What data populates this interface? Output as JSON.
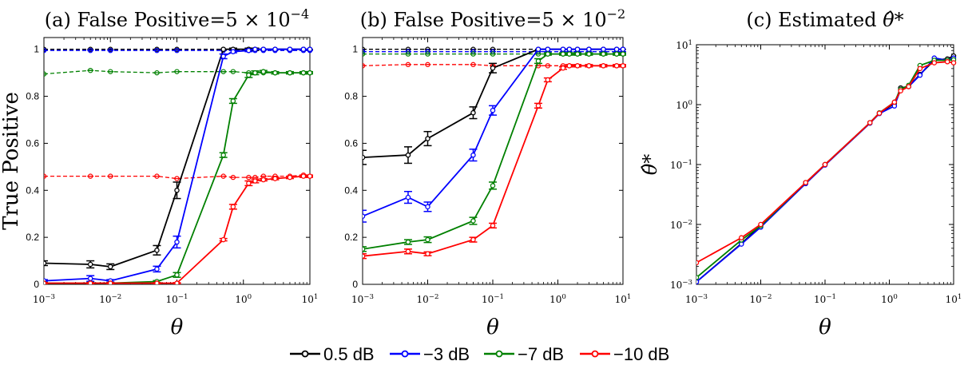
{
  "legend": [
    {
      "label": "0.5 dB",
      "color": "#000000"
    },
    {
      "label": "−3 dB",
      "color": "#0000ff"
    },
    {
      "label": "−7 dB",
      "color": "#008000"
    },
    {
      "label": "−10 dB",
      "color": "#ff0000"
    }
  ],
  "chart_data": [
    {
      "type": "line",
      "title_prefix": "(a) False Positive=5 × 10",
      "title_exp": "−4",
      "xlabel": "θ",
      "ylabel": "True Positive",
      "xscale": "log",
      "yscale": "linear",
      "xlim": [
        0.001,
        10
      ],
      "ylim": [
        0,
        1.05
      ],
      "xticks": [
        {
          "base": "10",
          "exp": "−3"
        },
        {
          "base": "10",
          "exp": "−2"
        },
        {
          "base": "10",
          "exp": "−1"
        },
        {
          "base": "10",
          "exp": "0"
        },
        {
          "base": "10",
          "exp": "1"
        }
      ],
      "yticks": [
        "0",
        "0.2",
        "0.4",
        "0.6",
        "0.8",
        "1"
      ],
      "x": [
        0.001,
        0.005,
        0.01,
        0.05,
        0.1,
        0.5,
        0.7,
        1.2,
        1.5,
        2,
        3,
        5,
        8,
        10
      ],
      "series": [
        {
          "name": "0.5 dB",
          "color": "#000000",
          "values": [
            0.09,
            0.085,
            0.075,
            0.145,
            0.4,
            1.0,
            1.0,
            1.0,
            1.0,
            1.0,
            1.0,
            1.0,
            1.0,
            1.0
          ],
          "error": [
            0.01,
            0.015,
            0.012,
            0.02,
            0.035,
            0,
            0.005,
            0.005,
            0.005,
            0,
            0,
            0,
            0,
            0
          ]
        },
        {
          "name": "−3 dB",
          "color": "#0000ff",
          "values": [
            0.015,
            0.025,
            0.015,
            0.065,
            0.18,
            0.97,
            0.99,
            0.995,
            1.0,
            1.0,
            1.0,
            1.0,
            1.0,
            1.0
          ],
          "error": [
            0.005,
            0.012,
            0.005,
            0.012,
            0.025,
            0.01,
            0.005,
            0.005,
            0,
            0,
            0,
            0,
            0,
            0
          ]
        },
        {
          "name": "−7 dB",
          "color": "#008000",
          "values": [
            0.005,
            0.005,
            0.005,
            0.012,
            0.04,
            0.55,
            0.78,
            0.89,
            0.9,
            0.905,
            0.9,
            0.9,
            0.9,
            0.9
          ],
          "error": [
            0.003,
            0.003,
            0.003,
            0.004,
            0.01,
            0.01,
            0.01,
            0.01,
            0.008,
            0.005,
            0.005,
            0.005,
            0.005,
            0.005
          ]
        },
        {
          "name": "−10 dB",
          "color": "#ff0000",
          "values": [
            0.005,
            0.005,
            0.005,
            0.005,
            0.005,
            0.19,
            0.33,
            0.43,
            0.44,
            0.445,
            0.45,
            0.455,
            0.46,
            0.46
          ],
          "error": [
            0.002,
            0.002,
            0.002,
            0.002,
            0.002,
            0.005,
            0.01,
            0.01,
            0.008,
            0.005,
            0.005,
            0.005,
            0.005,
            0.005
          ]
        }
      ],
      "dashed_x": [
        0.001,
        0.005,
        0.01,
        0.05,
        0.1,
        0.5,
        0.7,
        1.2,
        1.5,
        2,
        3,
        5,
        8,
        10
      ],
      "dashed_series": [
        {
          "name": "0.5 dB",
          "color": "#000000",
          "values": [
            1.0,
            1.0,
            1.0,
            1.0,
            1.0,
            1.0,
            1.0,
            1.0,
            1.0,
            1.0,
            1.0,
            1.0,
            1.0,
            1.0
          ]
        },
        {
          "name": "−3 dB",
          "color": "#0000ff",
          "values": [
            0.995,
            0.995,
            0.995,
            0.995,
            0.995,
            0.995,
            0.995,
            0.995,
            0.995,
            0.995,
            0.995,
            0.995,
            0.995,
            0.995
          ]
        },
        {
          "name": "−7 dB",
          "color": "#008000",
          "values": [
            0.895,
            0.91,
            0.905,
            0.9,
            0.905,
            0.905,
            0.905,
            0.9,
            0.9,
            0.9,
            0.9,
            0.9,
            0.9,
            0.9
          ]
        },
        {
          "name": "−10 dB",
          "color": "#ff0000",
          "values": [
            0.46,
            0.46,
            0.46,
            0.46,
            0.45,
            0.46,
            0.455,
            0.455,
            0.455,
            0.46,
            0.46,
            0.46,
            0.465,
            0.46
          ]
        }
      ]
    },
    {
      "type": "line",
      "title_prefix": "(b) False Positive=5 × 10",
      "title_exp": "−2",
      "xlabel": "θ",
      "ylabel": "",
      "xscale": "log",
      "yscale": "linear",
      "xlim": [
        0.001,
        10
      ],
      "ylim": [
        0,
        1.05
      ],
      "xticks": [
        {
          "base": "10",
          "exp": "−3"
        },
        {
          "base": "10",
          "exp": "−2"
        },
        {
          "base": "10",
          "exp": "−1"
        },
        {
          "base": "10",
          "exp": "0"
        },
        {
          "base": "10",
          "exp": "1"
        }
      ],
      "yticks": [
        "0",
        "0.2",
        "0.4",
        "0.6",
        "0.8",
        "1"
      ],
      "x": [
        0.001,
        0.005,
        0.01,
        0.05,
        0.1,
        0.5,
        0.7,
        1.2,
        1.5,
        2,
        3,
        5,
        8,
        10
      ],
      "series": [
        {
          "name": "0.5 dB",
          "color": "#000000",
          "values": [
            0.54,
            0.55,
            0.62,
            0.73,
            0.92,
            1.0,
            1.0,
            1.0,
            1.0,
            1.0,
            1.0,
            1.0,
            1.0,
            1.0
          ],
          "error": [
            0.03,
            0.035,
            0.03,
            0.025,
            0.02,
            0,
            0,
            0,
            0,
            0,
            0,
            0,
            0,
            0
          ]
        },
        {
          "name": "−3 dB",
          "color": "#0000ff",
          "values": [
            0.29,
            0.37,
            0.33,
            0.55,
            0.74,
            1.0,
            1.0,
            1.0,
            1.0,
            1.0,
            1.0,
            1.0,
            1.0,
            1.0
          ],
          "error": [
            0.025,
            0.025,
            0.02,
            0.025,
            0.02,
            0,
            0,
            0,
            0,
            0,
            0,
            0,
            0,
            0
          ]
        },
        {
          "name": "−7 dB",
          "color": "#008000",
          "values": [
            0.15,
            0.18,
            0.19,
            0.27,
            0.42,
            0.95,
            0.98,
            0.98,
            0.98,
            0.98,
            0.98,
            0.98,
            0.98,
            0.98
          ],
          "error": [
            0.01,
            0.01,
            0.012,
            0.015,
            0.015,
            0.01,
            0.005,
            0.005,
            0.005,
            0.005,
            0.005,
            0.005,
            0.005,
            0.005
          ]
        },
        {
          "name": "−10 dB",
          "color": "#ff0000",
          "values": [
            0.12,
            0.14,
            0.13,
            0.19,
            0.25,
            0.76,
            0.87,
            0.92,
            0.93,
            0.93,
            0.93,
            0.93,
            0.93,
            0.93
          ],
          "error": [
            0.01,
            0.01,
            0.008,
            0.01,
            0.01,
            0.01,
            0.008,
            0.005,
            0.005,
            0.005,
            0.005,
            0.005,
            0.005,
            0.005
          ]
        }
      ],
      "dashed_x": [
        0.001,
        0.005,
        0.01,
        0.05,
        0.1,
        0.5,
        0.7,
        1.2,
        1.5,
        2,
        3,
        5,
        8,
        10
      ],
      "dashed_series": [
        {
          "name": "0.5 dB",
          "color": "#000000",
          "values": [
            1.0,
            1.0,
            1.0,
            1.0,
            1.0,
            1.0,
            1.0,
            1.0,
            1.0,
            1.0,
            1.0,
            1.0,
            1.0,
            1.0
          ]
        },
        {
          "name": "−3 dB",
          "color": "#0000ff",
          "values": [
            0.99,
            0.99,
            0.99,
            0.99,
            0.99,
            0.99,
            0.99,
            0.99,
            0.99,
            0.99,
            0.99,
            0.99,
            0.99,
            0.99
          ]
        },
        {
          "name": "−7 dB",
          "color": "#008000",
          "values": [
            0.98,
            0.98,
            0.98,
            0.98,
            0.98,
            0.98,
            0.98,
            0.98,
            0.98,
            0.98,
            0.98,
            0.98,
            0.98,
            0.98
          ]
        },
        {
          "name": "−10 dB",
          "color": "#ff0000",
          "values": [
            0.93,
            0.935,
            0.935,
            0.935,
            0.93,
            0.93,
            0.93,
            0.93,
            0.93,
            0.93,
            0.93,
            0.93,
            0.93,
            0.93
          ]
        }
      ]
    },
    {
      "type": "line",
      "title_prefix": "(c) Estimated ",
      "title_symbol": "θ̂*",
      "xlabel": "θ",
      "ylabel": "θ̂*",
      "xscale": "log",
      "yscale": "log",
      "xlim": [
        0.001,
        10
      ],
      "ylim": [
        0.001,
        10
      ],
      "xticks": [
        {
          "base": "10",
          "exp": "−3"
        },
        {
          "base": "10",
          "exp": "−2"
        },
        {
          "base": "10",
          "exp": "−1"
        },
        {
          "base": "10",
          "exp": "0"
        },
        {
          "base": "10",
          "exp": "1"
        }
      ],
      "yticks": [
        {
          "base": "10",
          "exp": "−3"
        },
        {
          "base": "10",
          "exp": "−2"
        },
        {
          "base": "10",
          "exp": "−1"
        },
        {
          "base": "10",
          "exp": "0"
        },
        {
          "base": "10",
          "exp": "1"
        }
      ],
      "x": [
        0.001,
        0.005,
        0.01,
        0.05,
        0.1,
        0.5,
        0.7,
        1.2,
        1.5,
        2,
        3,
        5,
        8,
        10
      ],
      "series": [
        {
          "name": "0.5 dB",
          "color": "#000000",
          "values": [
            0.0011,
            0.0048,
            0.0095,
            0.049,
            0.1,
            0.5,
            0.72,
            1.05,
            1.9,
            2.0,
            3.2,
            5.5,
            5.8,
            6.5
          ]
        },
        {
          "name": "−3 dB",
          "color": "#0000ff",
          "values": [
            0.0011,
            0.0047,
            0.009,
            0.048,
            0.098,
            0.49,
            0.71,
            0.95,
            1.8,
            2.0,
            3.1,
            6.0,
            5.5,
            6.0
          ]
        },
        {
          "name": "−7 dB",
          "color": "#008000",
          "values": [
            0.0013,
            0.0055,
            0.0095,
            0.05,
            0.1,
            0.5,
            0.73,
            1.1,
            1.8,
            2.1,
            4.5,
            5.5,
            5.5,
            5.6
          ]
        },
        {
          "name": "−10 dB",
          "color": "#ff0000",
          "values": [
            0.0023,
            0.006,
            0.01,
            0.05,
            0.1,
            0.5,
            0.72,
            1.1,
            1.7,
            2.0,
            4.0,
            5.0,
            5.2,
            5.0
          ]
        }
      ]
    }
  ]
}
